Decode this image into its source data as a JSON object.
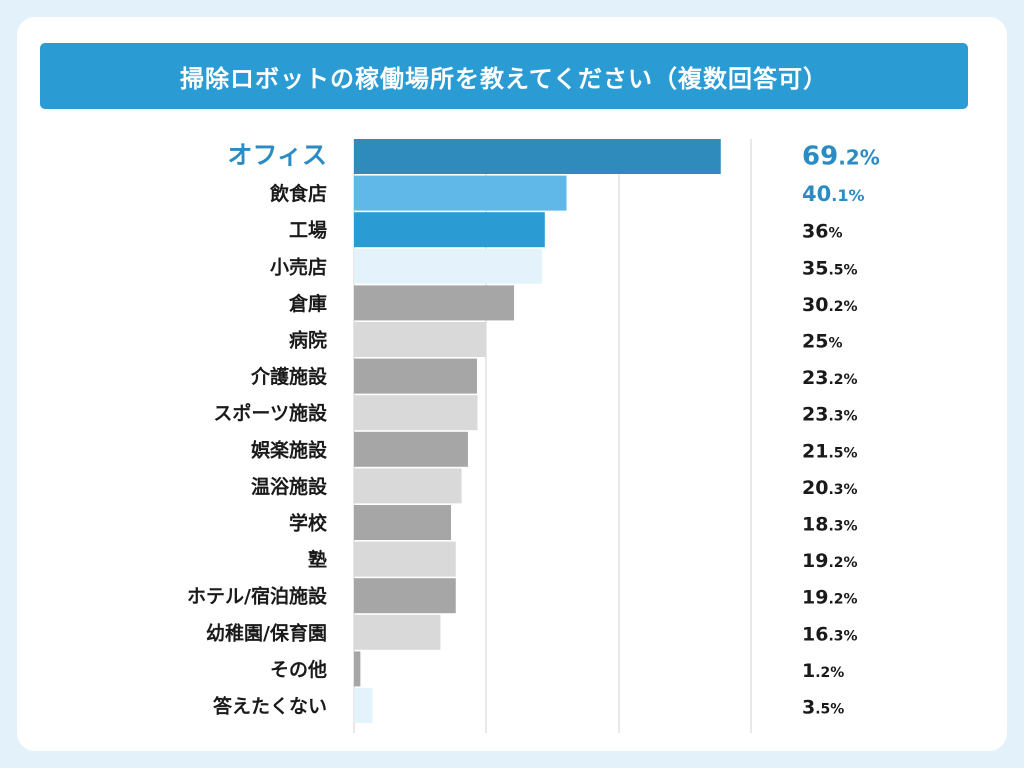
{
  "chart_data": {
    "type": "bar",
    "orientation": "horizontal",
    "title": "掃除ロボットの稼働場所を教えてください（複数回答可）",
    "categories": [
      "オフィス",
      "飲食店",
      "工場",
      "小売店",
      "倉庫",
      "病院",
      "介護施設",
      "スポーツ施設",
      "娯楽施設",
      "温浴施設",
      "学校",
      "塾",
      "ホテル/宿泊施設",
      "幼稚園/保育園",
      "その他",
      "答えたくない"
    ],
    "values": [
      69.2,
      40.1,
      36,
      35.5,
      30.2,
      25,
      23.2,
      23.3,
      21.5,
      20.3,
      18.3,
      19.2,
      19.2,
      16.3,
      1.2,
      3.5
    ],
    "value_labels": [
      {
        "num": "69",
        "dec": ".2%"
      },
      {
        "num": "40",
        "dec": ".1%"
      },
      {
        "num": "36",
        "dec": "%"
      },
      {
        "num": "35",
        "dec": ".5%"
      },
      {
        "num": "30",
        "dec": ".2%"
      },
      {
        "num": "25",
        "dec": "%"
      },
      {
        "num": "23",
        "dec": ".2%"
      },
      {
        "num": "23",
        "dec": ".3%"
      },
      {
        "num": "21",
        "dec": ".5%"
      },
      {
        "num": "20",
        "dec": ".3%"
      },
      {
        "num": "18",
        "dec": ".3%"
      },
      {
        "num": "19",
        "dec": ".2%"
      },
      {
        "num": "19",
        "dec": ".2%"
      },
      {
        "num": "16",
        "dec": ".3%"
      },
      {
        "num": "1",
        "dec": ".2%"
      },
      {
        "num": "3",
        "dec": ".5%"
      }
    ],
    "bar_colors": [
      "#2e8bbb",
      "#5fb8e8",
      "#2a9bd3",
      "#e4f3fb",
      "#a6a6a6",
      "#d9d9d9",
      "#a6a6a6",
      "#d9d9d9",
      "#a6a6a6",
      "#d9d9d9",
      "#a6a6a6",
      "#d9d9d9",
      "#a6a6a6",
      "#d9d9d9",
      "#a6a6a6",
      "#e4f3fb"
    ],
    "xlim": [
      0,
      75
    ],
    "grid": true,
    "unit": "%"
  },
  "colors": {
    "background": "#e3f1fa",
    "title_bar": "#2a9bd3",
    "highlight_text": "#2a8cc4",
    "gridline": "#d0d0d0"
  }
}
